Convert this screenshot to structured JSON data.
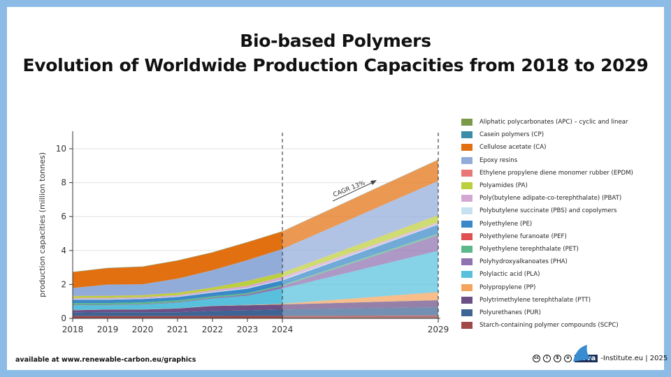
{
  "title_line1": "Bio-based Polymers",
  "title_line2": "Evolution of Worldwide Production Capacities from 2018 to 2029",
  "footer_left": "available at www.renewable-carbon.eu/graphics",
  "footer_right": "-Institute.eu | 2025",
  "logo_text": "nova",
  "chart_data": {
    "type": "area",
    "stacked": true,
    "ylabel": "production capacities (million tonnes)",
    "xlabel": "",
    "ylim": [
      0,
      11
    ],
    "yticks": [
      0,
      2,
      4,
      6,
      8,
      10
    ],
    "categories": [
      "2018",
      "2019",
      "2020",
      "2021",
      "2022",
      "2023",
      "2024",
      "2029"
    ],
    "dashed_markers": [
      "2024",
      "2029"
    ],
    "annotation": "CAGR 13%",
    "legend_position": "right",
    "series": [
      {
        "name": "Starch-containing polymer compounds (SCPC)",
        "color": "#a04848",
        "values": [
          0.14,
          0.14,
          0.14,
          0.14,
          0.14,
          0.15,
          0.15,
          0.18
        ]
      },
      {
        "name": "Polyurethanes (PUR)",
        "color": "#3d6494",
        "values": [
          0.2,
          0.22,
          0.22,
          0.22,
          0.3,
          0.32,
          0.37,
          0.48
        ]
      },
      {
        "name": "Polytrimethylene terephthalate (PTT)",
        "color": "#6b4f86",
        "values": [
          0.14,
          0.16,
          0.16,
          0.22,
          0.29,
          0.3,
          0.3,
          0.41
        ]
      },
      {
        "name": "Polypropylene (PP)",
        "color": "#f4a45e",
        "values": [
          0.01,
          0.01,
          0.01,
          0.01,
          0.01,
          0.02,
          0.04,
          0.48
        ]
      },
      {
        "name": "Polylactic acid (PLA)",
        "color": "#58c0dc",
        "values": [
          0.28,
          0.24,
          0.28,
          0.33,
          0.43,
          0.54,
          0.9,
          2.43
        ]
      },
      {
        "name": "Polyhydroxyalkanoates (PHA)",
        "color": "#8f72b0",
        "values": [
          0.03,
          0.03,
          0.03,
          0.04,
          0.05,
          0.08,
          0.14,
          0.93
        ]
      },
      {
        "name": "Polyethylene terephthalate (PET)",
        "color": "#5cb88a",
        "values": [
          0.1,
          0.1,
          0.1,
          0.1,
          0.08,
          0.08,
          0.07,
          0.09
        ]
      },
      {
        "name": "Polyethylene furanoate (PEF)",
        "color": "#e05050",
        "values": [
          0,
          0,
          0,
          0,
          0,
          0,
          0,
          0
        ]
      },
      {
        "name": "Polyethylene (PE)",
        "color": "#3a88c8",
        "values": [
          0.2,
          0.2,
          0.2,
          0.2,
          0.22,
          0.26,
          0.27,
          0.53
        ]
      },
      {
        "name": "Polybutylene succinate (PBS) and copolymers",
        "color": "#c6e2f0",
        "values": [
          0.03,
          0.03,
          0.03,
          0.03,
          0.04,
          0.05,
          0.05,
          0.03
        ]
      },
      {
        "name": "Poly(butylene adipate-co-terephthalate) (PBAT)",
        "color": "#d5a8d3",
        "values": [
          0.08,
          0.08,
          0.08,
          0.08,
          0.1,
          0.12,
          0.16,
          0.1
        ]
      },
      {
        "name": "Polyamides (PA)",
        "color": "#bccf3c",
        "values": [
          0.1,
          0.11,
          0.11,
          0.13,
          0.15,
          0.28,
          0.24,
          0.42
        ]
      },
      {
        "name": "Ethylene propylene diene monomer rubber (EPDM)",
        "color": "#e87878",
        "values": [
          0.01,
          0.01,
          0.01,
          0.01,
          0.01,
          0.01,
          0.01,
          0.01
        ]
      },
      {
        "name": "Epoxy resins",
        "color": "#92acd9",
        "values": [
          0.47,
          0.66,
          0.64,
          0.83,
          1.02,
          1.22,
          1.39,
          2.01
        ]
      },
      {
        "name": "Cellulose acetate (CA)",
        "color": "#e37010",
        "values": [
          0.93,
          0.97,
          1.03,
          1.06,
          1.04,
          1.05,
          1.03,
          1.24
        ]
      },
      {
        "name": "Casein polymers (CP)",
        "color": "#3a8ca8",
        "values": [
          0.01,
          0.01,
          0.01,
          0.01,
          0.01,
          0.01,
          0.01,
          0.01
        ]
      },
      {
        "name": "Aliphatic polycarbonates (APC) – cyclic and linear",
        "color": "#7a9a4a",
        "values": [
          0.01,
          0.01,
          0.01,
          0.01,
          0.01,
          0.01,
          0.01,
          0.01
        ]
      }
    ]
  }
}
